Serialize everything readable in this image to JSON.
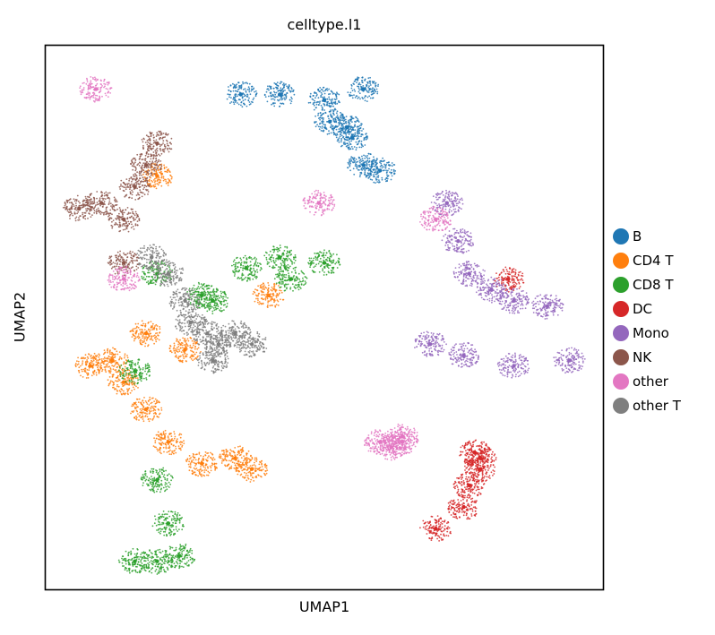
{
  "figure": {
    "title": "celltype.l1",
    "xlabel": "UMAP1",
    "ylabel": "UMAP2"
  },
  "legend": {
    "placement": "right",
    "items": [
      {
        "label": "B",
        "color": "#1f77b4"
      },
      {
        "label": "CD4 T",
        "color": "#ff7f0e"
      },
      {
        "label": "CD8 T",
        "color": "#2ca02c"
      },
      {
        "label": "DC",
        "color": "#d62728"
      },
      {
        "label": "Mono",
        "color": "#9467bd"
      },
      {
        "label": "NK",
        "color": "#8c564b"
      },
      {
        "label": "other",
        "color": "#e377c2"
      },
      {
        "label": "other T",
        "color": "#7f7f7f"
      }
    ]
  },
  "chart_data": {
    "type": "scatter",
    "title": "celltype.l1",
    "xlabel": "UMAP1",
    "ylabel": "UMAP2",
    "xlim": [
      0,
      100
    ],
    "ylim": [
      0,
      100
    ],
    "ticks": false,
    "grid": false,
    "legend_position": "right",
    "series": [
      {
        "name": "B",
        "color": "#1f77b4",
        "points": [
          [
            35,
            91
          ],
          [
            42,
            91
          ],
          [
            50,
            90
          ],
          [
            57,
            92
          ],
          [
            51,
            86
          ],
          [
            54,
            85
          ],
          [
            55,
            83
          ],
          [
            57,
            78
          ],
          [
            60,
            77
          ]
        ]
      },
      {
        "name": "CD4 T",
        "color": "#ff7f0e",
        "points": [
          [
            8,
            41
          ],
          [
            12,
            42
          ],
          [
            14,
            38
          ],
          [
            18,
            33
          ],
          [
            22,
            27
          ],
          [
            28,
            23
          ],
          [
            34,
            24
          ],
          [
            37,
            22
          ],
          [
            18,
            47
          ],
          [
            25,
            44
          ],
          [
            40,
            54
          ],
          [
            20,
            76
          ]
        ]
      },
      {
        "name": "CD8 T",
        "color": "#2ca02c",
        "points": [
          [
            20,
            58
          ],
          [
            28,
            54
          ],
          [
            36,
            59
          ],
          [
            42,
            61
          ],
          [
            44,
            57
          ],
          [
            50,
            60
          ],
          [
            30,
            53
          ],
          [
            16,
            5
          ],
          [
            24,
            6
          ],
          [
            22,
            12
          ],
          [
            20,
            5
          ],
          [
            16,
            40
          ],
          [
            20,
            20
          ]
        ]
      },
      {
        "name": "DC",
        "color": "#d62728",
        "points": [
          [
            77,
            25
          ],
          [
            78,
            24
          ],
          [
            78,
            22
          ],
          [
            76,
            19
          ],
          [
            75,
            15
          ],
          [
            70,
            11
          ],
          [
            83,
            57
          ]
        ]
      },
      {
        "name": "Mono",
        "color": "#9467bd",
        "points": [
          [
            72,
            71
          ],
          [
            74,
            64
          ],
          [
            76,
            58
          ],
          [
            80,
            55
          ],
          [
            84,
            53
          ],
          [
            90,
            52
          ],
          [
            94,
            42
          ],
          [
            84,
            41
          ],
          [
            75,
            43
          ],
          [
            69,
            45
          ]
        ]
      },
      {
        "name": "NK",
        "color": "#8c564b",
        "points": [
          [
            6,
            70
          ],
          [
            10,
            71
          ],
          [
            14,
            68
          ],
          [
            16,
            74
          ],
          [
            18,
            78
          ],
          [
            20,
            82
          ],
          [
            14,
            60
          ]
        ]
      },
      {
        "name": "other",
        "color": "#e377c2",
        "points": [
          [
            9,
            92
          ],
          [
            62,
            26
          ],
          [
            60,
            27
          ],
          [
            64,
            27
          ],
          [
            64,
            28
          ],
          [
            70,
            68
          ],
          [
            49,
            71
          ],
          [
            14,
            57
          ]
        ]
      },
      {
        "name": "other T",
        "color": "#7f7f7f",
        "points": [
          [
            19,
            61
          ],
          [
            22,
            58
          ],
          [
            25,
            53
          ],
          [
            26,
            49
          ],
          [
            29,
            47
          ],
          [
            31,
            45
          ],
          [
            30,
            42
          ],
          [
            34,
            47
          ],
          [
            37,
            45
          ]
        ]
      }
    ]
  }
}
